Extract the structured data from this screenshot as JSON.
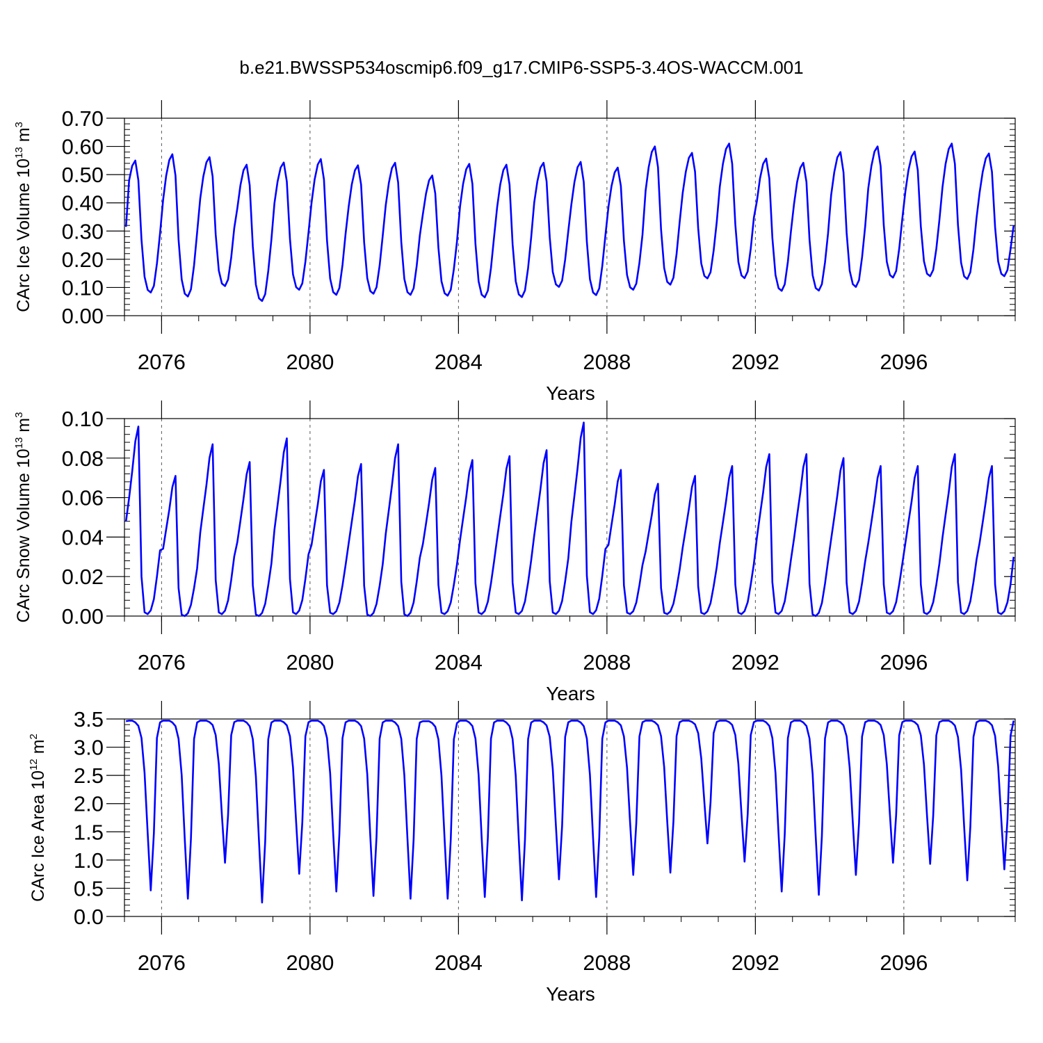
{
  "chart_data": {
    "title": "b.e21.BWSSP534oscmip6.f09_g17.CMIP6-SSP5-3.4OS-WACCM.001",
    "panels": [
      {
        "type": "line",
        "ylabel": {
          "main": "CArc Ice Volume 10",
          "exp": "13",
          "unit": " m",
          "unit_exp": "3"
        },
        "xlabel": "Years",
        "xlim": [
          2075,
          2099
        ],
        "ylim": [
          0,
          0.7
        ],
        "yticks": [
          0,
          0.1,
          0.2,
          0.3,
          0.4,
          0.5,
          0.6,
          0.7
        ],
        "ytick_labels": [
          "0.00",
          "0.10",
          "0.20",
          "0.30",
          "0.40",
          "0.50",
          "0.60",
          "0.70"
        ],
        "xticks": [
          2076,
          2080,
          2084,
          2088,
          2092,
          2096
        ],
        "xtick_labels": [
          "2076",
          "2080",
          "2084",
          "2088",
          "2092",
          "2096"
        ],
        "grid": "vertical dashed at labelled years",
        "series_color": "#0000ff",
        "annual_cycle": {
          "start_year": 2075,
          "years": 24,
          "summer_min": [
            0.082,
            0.068,
            0.105,
            0.052,
            0.092,
            0.074,
            0.078,
            0.074,
            0.071,
            0.065,
            0.066,
            0.102,
            0.073,
            0.092,
            0.11,
            0.132,
            0.133,
            0.088,
            0.089,
            0.102,
            0.135,
            0.14,
            0.13,
            0.14
          ],
          "winter_max": [
            0.55,
            0.572,
            0.562,
            0.535,
            0.543,
            0.555,
            0.533,
            0.542,
            0.497,
            0.538,
            0.535,
            0.542,
            0.545,
            0.525,
            0.6,
            0.577,
            0.61,
            0.557,
            0.542,
            0.58,
            0.6,
            0.582,
            0.61,
            0.575
          ],
          "start_value": 0.315,
          "end_value": 0.32
        }
      },
      {
        "type": "line",
        "ylabel": {
          "main": "CArc Snow Volume 10",
          "exp": "13",
          "unit": " m",
          "unit_exp": "3"
        },
        "xlabel": "Years",
        "xlim": [
          2075,
          2099
        ],
        "ylim": [
          0,
          0.1
        ],
        "yticks": [
          0,
          0.02,
          0.04,
          0.06,
          0.08,
          0.1
        ],
        "ytick_labels": [
          "0.00",
          "0.02",
          "0.04",
          "0.06",
          "0.08",
          "0.10"
        ],
        "xticks": [
          2076,
          2080,
          2084,
          2088,
          2092,
          2096
        ],
        "xtick_labels": [
          "2076",
          "2080",
          "2084",
          "2088",
          "2092",
          "2096"
        ],
        "grid": "vertical dashed at labelled years",
        "series_color": "#0000ff",
        "annual_cycle": {
          "start_year": 2075,
          "years": 24,
          "summer_min": [
            0.001,
            0.0,
            0.001,
            0.0,
            0.001,
            0.001,
            0.0,
            0.0,
            0.001,
            0.001,
            0.001,
            0.001,
            0.001,
            0.001,
            0.001,
            0.001,
            0.001,
            0.001,
            0.0,
            0.001,
            0.001,
            0.001,
            0.001,
            0.001
          ],
          "winter_max": [
            0.096,
            0.071,
            0.087,
            0.078,
            0.09,
            0.074,
            0.077,
            0.087,
            0.075,
            0.079,
            0.081,
            0.084,
            0.098,
            0.074,
            0.067,
            0.071,
            0.076,
            0.082,
            0.082,
            0.08,
            0.076,
            0.076,
            0.082,
            0.076
          ],
          "start_value": 0.048,
          "end_value": 0.03
        }
      },
      {
        "type": "line",
        "ylabel": {
          "main": "CArc Ice Area 10",
          "exp": "12",
          "unit": " m",
          "unit_exp": "2"
        },
        "xlabel": "Years",
        "xlim": [
          2075,
          2099
        ],
        "ylim": [
          0,
          3.5
        ],
        "yticks": [
          0,
          0.5,
          1.0,
          1.5,
          2.0,
          2.5,
          3.0,
          3.5
        ],
        "ytick_labels": [
          "0.0",
          "0.5",
          "1.0",
          "1.5",
          "2.0",
          "2.5",
          "3.0",
          "3.5"
        ],
        "xticks": [
          2076,
          2080,
          2084,
          2088,
          2092,
          2096
        ],
        "xtick_labels": [
          "2076",
          "2080",
          "2084",
          "2088",
          "2092",
          "2096"
        ],
        "grid": "vertical dashed at labelled years",
        "series_color": "#0000ff",
        "annual_cycle": {
          "start_year": 2075,
          "years": 24,
          "summer_min": [
            0.4,
            0.25,
            0.9,
            0.18,
            0.7,
            0.38,
            0.3,
            0.25,
            0.25,
            0.28,
            0.22,
            0.6,
            0.28,
            0.68,
            0.72,
            1.25,
            0.92,
            0.38,
            0.32,
            0.68,
            0.9,
            0.88,
            0.58,
            0.78
          ],
          "winter_max": [
            3.47,
            3.47,
            3.47,
            3.47,
            3.47,
            3.47,
            3.47,
            3.47,
            3.46,
            3.47,
            3.47,
            3.47,
            3.47,
            3.47,
            3.47,
            3.47,
            3.47,
            3.47,
            3.47,
            3.47,
            3.47,
            3.47,
            3.47,
            3.47
          ],
          "start_value": 3.46,
          "end_value": 3.47
        }
      }
    ]
  }
}
